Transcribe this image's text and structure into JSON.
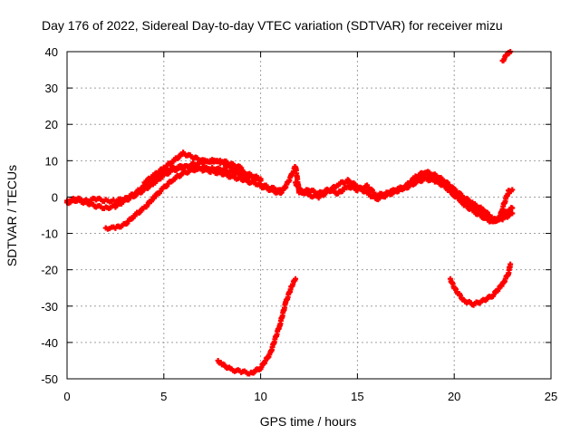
{
  "chart_data": {
    "type": "scatter",
    "title": "Day 176 of 2022, Sidereal Day-to-day VTEC variation (SDTVAR) for receiver mizu",
    "xlabel": "GPS time / hours",
    "ylabel": "SDTVAR / TECUs",
    "xlim": [
      0,
      25
    ],
    "ylim": [
      -50,
      40
    ],
    "xticks": [
      "0",
      "5",
      "10",
      "15",
      "20",
      "25"
    ],
    "yticks": [
      "-50",
      "-40",
      "-30",
      "-20",
      "-10",
      "0",
      "10",
      "20",
      "30",
      "40"
    ],
    "grid": true,
    "marker": "plus",
    "color": "#ff0000",
    "series": [
      {
        "name": "track-a",
        "x": [
          0,
          0.5,
          1,
          1.5,
          2,
          2.5,
          3,
          3.5,
          4,
          4.5,
          5,
          5.5,
          6,
          6.5,
          7,
          7.5,
          8,
          8.5,
          9,
          9.5,
          10,
          10.5,
          11
        ],
        "y": [
          -1,
          -0.5,
          -1,
          -0.5,
          -1,
          -1,
          -0.5,
          1,
          3,
          5,
          7,
          8,
          8.5,
          8,
          7.5,
          7,
          6.5,
          5.5,
          5,
          4,
          3.5,
          2.5,
          2
        ]
      },
      {
        "name": "track-b",
        "x": [
          4,
          4.5,
          5,
          5.5,
          6,
          6.5,
          7,
          7.5,
          8,
          8.5,
          9,
          9.5,
          10
        ],
        "y": [
          4,
          6,
          8,
          10,
          12,
          11,
          10,
          10,
          9.5,
          8,
          7,
          6,
          5
        ]
      },
      {
        "name": "track-c",
        "x": [
          0,
          0.5,
          1,
          1.5,
          2,
          2.5,
          3,
          3.5,
          4,
          4.5,
          5,
          5.5,
          6,
          6.5,
          7,
          7.5,
          8,
          8.5,
          9
        ],
        "y": [
          -1.5,
          -1,
          -1.5,
          -2.5,
          -3,
          -2.5,
          -1,
          0.5,
          2,
          4,
          6,
          7.5,
          8,
          9,
          9.5,
          10,
          10,
          9,
          8
        ]
      },
      {
        "name": "track-d",
        "x": [
          2,
          2.5,
          3,
          3.5,
          4,
          4.5,
          5,
          5.5,
          6,
          6.5,
          7,
          7.5,
          8,
          8.5,
          9,
          9.5,
          10
        ],
        "y": [
          -8.5,
          -8.5,
          -7.5,
          -5,
          -3,
          0,
          2.5,
          5,
          6.5,
          7.5,
          8,
          8,
          7.5,
          7,
          6,
          5.5,
          4.5
        ]
      },
      {
        "name": "track-e",
        "x": [
          10,
          10.5,
          11,
          11.3,
          11.6,
          11.8,
          12,
          12.5,
          13,
          13.5,
          14,
          14.5,
          15,
          15.5,
          16,
          16.5,
          17,
          17.5,
          18,
          18.5,
          19,
          19.5,
          20,
          20.5,
          21,
          21.5,
          22,
          22.5,
          23
        ],
        "y": [
          3,
          2,
          1,
          3,
          6,
          8.5,
          1,
          2,
          1,
          2,
          1,
          3,
          2,
          3,
          0.5,
          1,
          2,
          3,
          5,
          6.5,
          5,
          3,
          1,
          -2,
          -4,
          -5.5,
          -7,
          -5,
          -3
        ]
      },
      {
        "name": "track-f",
        "x": [
          16.5,
          17,
          17.5,
          18,
          18.5,
          19,
          19.5,
          20,
          20.5,
          21,
          21.5,
          22,
          22.5,
          23
        ],
        "y": [
          1,
          2,
          2.5,
          4,
          5,
          4.5,
          3,
          0.5,
          -1.5,
          -3,
          -4.5,
          -6.5,
          -6,
          -4.5
        ]
      },
      {
        "name": "track-g",
        "x": [
          11.8,
          12,
          12.5,
          13,
          13.5,
          14,
          14.5,
          15,
          15.5,
          16,
          16.5,
          17,
          17.5,
          18,
          18.5,
          19,
          19.5,
          20,
          20.5,
          21,
          21.5,
          22,
          22.3,
          22.5,
          22.8,
          23
        ],
        "y": [
          4,
          2,
          0.5,
          0,
          1.5,
          3.5,
          4.5,
          3,
          1,
          -0.5,
          0.5,
          1.5,
          3,
          5.5,
          7,
          6,
          4.5,
          2,
          0,
          -2,
          -3.5,
          -6,
          -6.5,
          -3,
          1.5,
          2
        ]
      },
      {
        "name": "track-h",
        "x": [
          7.8,
          8,
          8.5,
          9,
          9.5,
          10,
          10.5,
          11,
          11.3,
          11.6,
          11.8
        ],
        "y": [
          -45,
          -46,
          -47.5,
          -48,
          -48.5,
          -47,
          -43,
          -35,
          -29,
          -24.5,
          -22.5
        ]
      },
      {
        "name": "track-i",
        "x": [
          19.8,
          20,
          20.5,
          21,
          21.5,
          22,
          22.5,
          22.8,
          22.9
        ],
        "y": [
          -22.5,
          -25,
          -28.5,
          -29.5,
          -28.5,
          -27,
          -24,
          -21,
          -18.5
        ]
      },
      {
        "name": "track-j",
        "x": [
          22.5,
          22.7,
          22.9
        ],
        "y": [
          37.5,
          39,
          40
        ]
      }
    ]
  }
}
